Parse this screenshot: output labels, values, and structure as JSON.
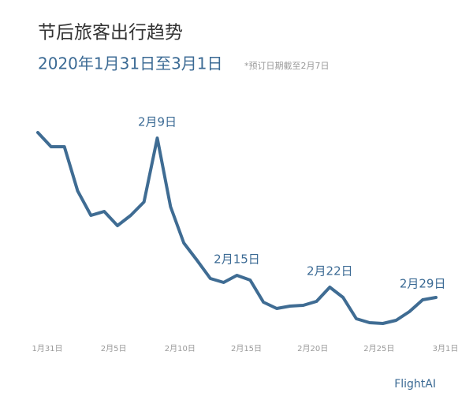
{
  "chart_data": {
    "type": "line",
    "title": "节后旅客出行趋势",
    "subtitle": "2020年1月31日至3月1日",
    "note": "*预订日期截至2月7日",
    "source": "FlightAI",
    "categories": [
      "1月31日",
      null,
      null,
      null,
      null,
      "2月5日",
      null,
      null,
      null,
      null,
      "2月10日",
      null,
      null,
      null,
      null,
      "2月15日",
      null,
      null,
      null,
      null,
      "2月20日",
      null,
      null,
      null,
      null,
      "2月25日",
      null,
      null,
      null,
      null,
      "3月1日"
    ],
    "series": [
      {
        "name": "旅客出行",
        "color": "#3f6c93",
        "values": [
          262,
          244,
          244,
          188,
          157,
          162,
          144,
          157,
          174,
          255,
          168,
          122,
          100,
          77,
          72,
          81,
          75,
          47,
          39,
          42,
          43,
          48,
          66,
          53,
          26,
          21,
          20,
          24,
          35,
          50,
          53
        ]
      }
    ],
    "ylim": [
      0,
      270
    ],
    "annotations": [
      {
        "text": "2月9日",
        "point": 9
      },
      {
        "text": "2月15日",
        "point": 15
      },
      {
        "text": "2月22日",
        "point": 22
      },
      {
        "text": "2月29日",
        "point": 29
      }
    ]
  }
}
